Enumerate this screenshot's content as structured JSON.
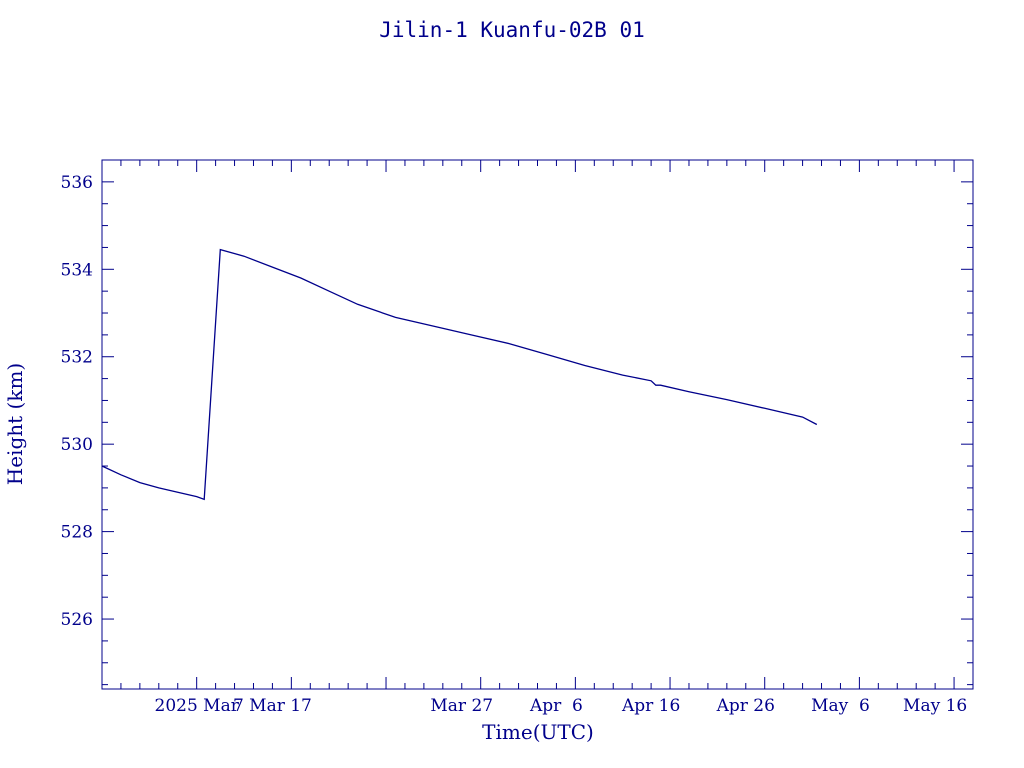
{
  "chart_data": {
    "type": "line",
    "title": "Jilin-1 Kuanfu-02B 01",
    "xlabel": "Time(UTC)",
    "ylabel": "Height (km)",
    "color": "#00008b",
    "x_range": [
      "2025-02-17T00:00",
      "2025-05-20T00:00"
    ],
    "ylim": [
      524.4,
      536.5
    ],
    "y_ticks": [
      526,
      528,
      530,
      532,
      534,
      536
    ],
    "x_ticks": [
      {
        "date": "2025-02-27",
        "label": "2025 Mar"
      },
      {
        "date": "2025-03-07",
        "label": "7 Mar 17"
      },
      {
        "date": "2025-03-27",
        "label": "Mar 27"
      },
      {
        "date": "2025-04-06",
        "label": "Apr  6"
      },
      {
        "date": "2025-04-16",
        "label": "Apr 16"
      },
      {
        "date": "2025-04-26",
        "label": "Apr 26"
      },
      {
        "date": "2025-05-06",
        "label": "May  6"
      },
      {
        "date": "2025-05-16",
        "label": "May 16"
      }
    ],
    "series": [
      {
        "points": [
          [
            "2025-02-17T00:00",
            529.5
          ],
          [
            "2025-02-19T00:00",
            529.3
          ],
          [
            "2025-02-21T00:00",
            529.12
          ],
          [
            "2025-02-23T00:00",
            529.0
          ],
          [
            "2025-02-25T00:00",
            528.9
          ],
          [
            "2025-02-27T00:00",
            528.8
          ],
          [
            "2025-02-27T19:00",
            528.74
          ],
          [
            "2025-03-01T12:00",
            534.45
          ],
          [
            "2025-03-04T00:00",
            534.3
          ],
          [
            "2025-03-07T00:00",
            534.05
          ],
          [
            "2025-03-10T00:00",
            533.8
          ],
          [
            "2025-03-13T00:00",
            533.5
          ],
          [
            "2025-03-16T00:00",
            533.2
          ],
          [
            "2025-03-20T00:00",
            532.9
          ],
          [
            "2025-03-24T00:00",
            532.7
          ],
          [
            "2025-03-28T00:00",
            532.5
          ],
          [
            "2025-04-01T00:00",
            532.3
          ],
          [
            "2025-04-05T00:00",
            532.05
          ],
          [
            "2025-04-09T00:00",
            531.8
          ],
          [
            "2025-04-13T00:00",
            531.58
          ],
          [
            "2025-04-16T00:00",
            531.45
          ],
          [
            "2025-04-16T12:00",
            531.35
          ],
          [
            "2025-04-17T00:00",
            531.35
          ],
          [
            "2025-04-20T00:00",
            531.2
          ],
          [
            "2025-04-24T00:00",
            531.02
          ],
          [
            "2025-04-28T00:00",
            530.82
          ],
          [
            "2025-05-02T00:00",
            530.62
          ],
          [
            "2025-05-03T12:00",
            530.45
          ]
        ]
      }
    ]
  }
}
